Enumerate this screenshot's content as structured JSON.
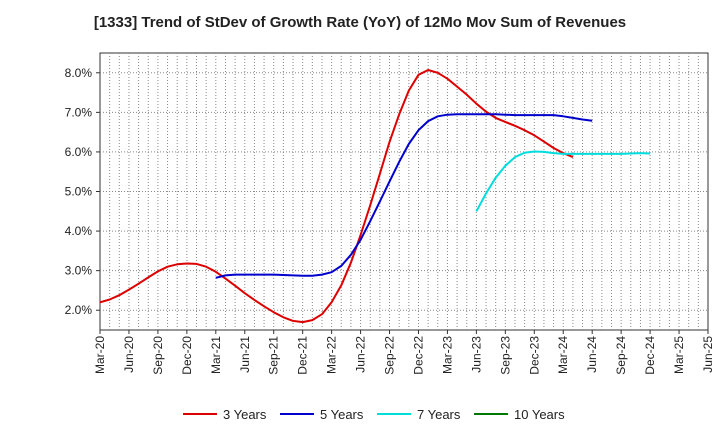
{
  "chart_data": {
    "type": "line",
    "title": "[1333]  Trend of StDev of Growth Rate (YoY) of 12Mo Mov Sum of Revenues",
    "xlabel": "",
    "ylabel": "",
    "ylim": [
      1.5,
      8.5
    ],
    "y_ticks": [
      2.0,
      3.0,
      4.0,
      5.0,
      6.0,
      7.0,
      8.0
    ],
    "y_tick_labels": [
      "2.0%",
      "3.0%",
      "4.0%",
      "5.0%",
      "6.0%",
      "7.0%",
      "8.0%"
    ],
    "x_tick_labels": [
      "Mar-20",
      "Jun-20",
      "Sep-20",
      "Dec-20",
      "Mar-21",
      "Jun-21",
      "Sep-21",
      "Dec-21",
      "Mar-22",
      "Jun-22",
      "Sep-22",
      "Dec-22",
      "Mar-23",
      "Jun-23",
      "Sep-23",
      "Dec-23",
      "Mar-24",
      "Jun-24",
      "Sep-24",
      "Dec-24",
      "Mar-25",
      "Jun-25"
    ],
    "grid": true,
    "legend_position": "bottom",
    "series": [
      {
        "name": "3 Years",
        "color": "#dd0000",
        "start_index": 0,
        "values": [
          2.2,
          2.27,
          2.38,
          2.52,
          2.67,
          2.83,
          2.98,
          3.1,
          3.16,
          3.18,
          3.17,
          3.1,
          2.97,
          2.8,
          2.62,
          2.43,
          2.26,
          2.1,
          1.95,
          1.82,
          1.73,
          1.7,
          1.75,
          1.9,
          2.2,
          2.63,
          3.2,
          3.9,
          4.65,
          5.45,
          6.25,
          6.95,
          7.55,
          7.95,
          8.07,
          8.0,
          7.85,
          7.65,
          7.45,
          7.22,
          7.02,
          6.86,
          6.76,
          6.66,
          6.55,
          6.42,
          6.26,
          6.1,
          5.97,
          5.87
        ]
      },
      {
        "name": "5 Years",
        "color": "#0000cc",
        "start_index": 12,
        "values": [
          2.82,
          2.88,
          2.9,
          2.9,
          2.9,
          2.9,
          2.9,
          2.89,
          2.88,
          2.87,
          2.87,
          2.9,
          2.96,
          3.12,
          3.4,
          3.78,
          4.25,
          4.75,
          5.25,
          5.75,
          6.2,
          6.55,
          6.78,
          6.9,
          6.94,
          6.95,
          6.95,
          6.95,
          6.95,
          6.95,
          6.94,
          6.93,
          6.93,
          6.93,
          6.93,
          6.93,
          6.9,
          6.86,
          6.82,
          6.79
        ]
      },
      {
        "name": "7 Years",
        "color": "#00dddd",
        "start_index": 39,
        "values": [
          4.5,
          4.95,
          5.35,
          5.65,
          5.87,
          5.98,
          6.01,
          6.0,
          5.97,
          5.95,
          5.95,
          5.95,
          5.95,
          5.95,
          5.95,
          5.95,
          5.96,
          5.97,
          5.96
        ]
      },
      {
        "name": "10 Years",
        "color": "#007700",
        "start_index": 0,
        "values": []
      }
    ]
  }
}
